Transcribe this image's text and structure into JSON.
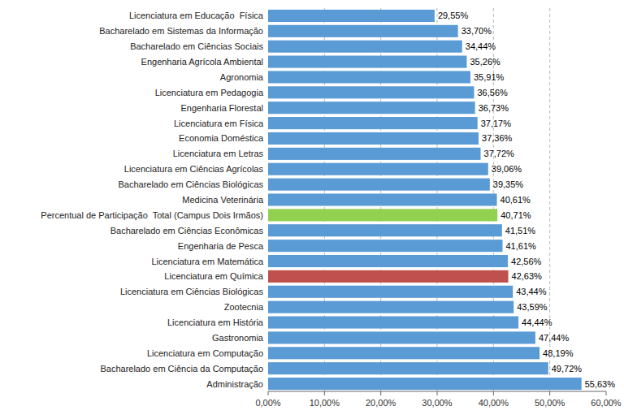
{
  "chart_data": {
    "type": "bar",
    "orientation": "horizontal",
    "categories": [
      "Administração",
      "Bacharelado em Ciência da Computação",
      "Licenciatura em Computação",
      "Gastronomia",
      "Licenciatura em História",
      "Zootecnia",
      "Licenciatura em Ciências Biológicas",
      "Licenciatura em Química",
      "Licenciatura em Matemática",
      "Engenharia de Pesca",
      "Bacharelado em Ciências Econômicas",
      "Percentual de Participação  Total (Campus Dois Irmãos)",
      "Medicina Veterinária",
      "Bacharelado em Ciências Biológicas",
      "Licenciatura em Ciências Agrícolas",
      "Licenciatura em Letras",
      "Economia Doméstica",
      "Licenciatura em Física",
      "Engenharia Florestal",
      "Licenciatura em Pedagogia",
      "Agronomia",
      "Engenharia Agrícola Ambiental",
      "Bacharelado em Ciências Sociais",
      "Bacharelado em Sistemas da Informação",
      "Licenciatura em Educação  Física"
    ],
    "values": [
      55.63,
      49.72,
      48.19,
      47.44,
      44.44,
      43.59,
      43.44,
      42.63,
      42.56,
      41.61,
      41.51,
      40.71,
      40.61,
      39.35,
      39.06,
      37.72,
      37.36,
      37.17,
      36.73,
      36.56,
      35.91,
      35.26,
      34.44,
      33.7,
      29.55
    ],
    "value_labels": [
      "55,63%",
      "49,72%",
      "48,19%",
      "47,44%",
      "44,44%",
      "43,59%",
      "43,44%",
      "42,63%",
      "42,56%",
      "41,61%",
      "41,51%",
      "40,71%",
      "40,61%",
      "39,35%",
      "39,06%",
      "37,72%",
      "37,36%",
      "37,17%",
      "36,73%",
      "36,56%",
      "35,91%",
      "35,26%",
      "34,44%",
      "33,70%",
      "29,55%"
    ],
    "data_labels": true,
    "colors": [
      "#5B9BD5",
      "#5B9BD5",
      "#5B9BD5",
      "#5B9BD5",
      "#5B9BD5",
      "#5B9BD5",
      "#5B9BD5",
      "#C0504D",
      "#5B9BD5",
      "#5B9BD5",
      "#5B9BD5",
      "#92D050",
      "#5B9BD5",
      "#5B9BD5",
      "#5B9BD5",
      "#5B9BD5",
      "#5B9BD5",
      "#5B9BD5",
      "#5B9BD5",
      "#5B9BD5",
      "#5B9BD5",
      "#5B9BD5",
      "#5B9BD5",
      "#5B9BD5",
      "#5B9BD5"
    ],
    "xlim": [
      0,
      60
    ],
    "xticks": [
      {
        "value": 0,
        "label": "0,00%"
      },
      {
        "value": 10,
        "label": "10,00%"
      },
      {
        "value": 20,
        "label": "20,00%"
      },
      {
        "value": 30,
        "label": "30,00%"
      },
      {
        "value": 40,
        "label": "40,00%"
      },
      {
        "value": 50,
        "label": "50,00%"
      },
      {
        "value": 60,
        "label": "60,00%"
      }
    ],
    "grid": true
  }
}
